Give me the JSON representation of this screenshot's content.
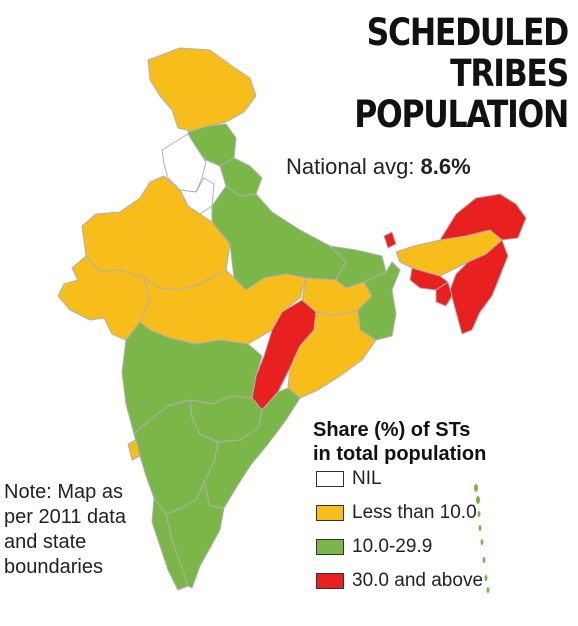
{
  "title": {
    "line1": "SCHEDULED TRIBES",
    "line2": "POPULATION"
  },
  "national_avg": {
    "label": "National avg:",
    "value": "8.6%"
  },
  "legend": {
    "title_line1": "Share (%) of STs",
    "title_line2": "in total population",
    "items": [
      {
        "label": "NIL",
        "color": "#ffffff"
      },
      {
        "label": "Less than 10.0",
        "color": "#f7bd1a"
      },
      {
        "label": "10.0-29.9",
        "color": "#7ab648"
      },
      {
        "label": "30.0 and above",
        "color": "#e8201f"
      }
    ]
  },
  "note": "Note: Map as per 2011 data and state boundaries",
  "map_colors": {
    "nil": "#ffffff",
    "low": "#f7bd1a",
    "mid": "#7ab648",
    "high": "#e8201f",
    "border": "#b5b5b5"
  }
}
